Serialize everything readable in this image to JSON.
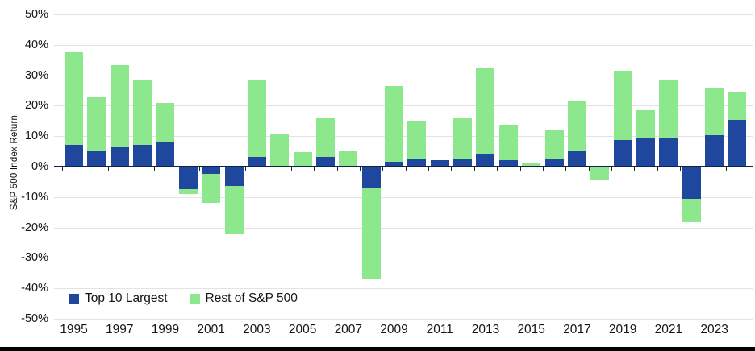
{
  "chart_data": {
    "type": "bar",
    "variant": "stacked",
    "title": "",
    "ylabel": "S&P 500 Index Return",
    "xlabel": "",
    "ylim": [
      -50,
      50
    ],
    "ytick_step": 10,
    "ytick_labels": [
      "50%",
      "40%",
      "30%",
      "20%",
      "10%",
      "0%",
      "-10%",
      "-20%",
      "-30%",
      "-40%",
      "-50%"
    ],
    "years": [
      1995,
      1996,
      1997,
      1998,
      1999,
      2000,
      2001,
      2002,
      2003,
      2004,
      2005,
      2006,
      2007,
      2008,
      2009,
      2010,
      2011,
      2012,
      2013,
      2014,
      2015,
      2016,
      2017,
      2018,
      2019,
      2020,
      2021,
      2022,
      2023,
      2024
    ],
    "xtick_labels": [
      "1995",
      "1997",
      "1999",
      "2001",
      "2003",
      "2005",
      "2007",
      "2009",
      "2011",
      "2013",
      "2015",
      "2017",
      "2019",
      "2021",
      "2023"
    ],
    "grid": true,
    "legend_position": "inside-bottom-left",
    "series": [
      {
        "name": "Top 10 Largest",
        "color": "#1f479e",
        "values": [
          7.2,
          5.2,
          6.5,
          7.2,
          8.0,
          -7.4,
          -2.5,
          -6.3,
          3.3,
          0,
          0,
          3.3,
          0,
          -6.8,
          1.7,
          2.5,
          2.0,
          2.3,
          4.3,
          2.0,
          0,
          2.6,
          4.9,
          0,
          8.6,
          9.5,
          9.3,
          -10.5,
          10.2,
          15.4
        ]
      },
      {
        "name": "Rest of S&P 500",
        "color": "#8de78c",
        "values": [
          30.3,
          17.8,
          26.9,
          21.4,
          13.0,
          -1.7,
          -9.4,
          -15.8,
          25.4,
          10.5,
          4.8,
          12.5,
          5.0,
          -30.2,
          24.8,
          12.6,
          0,
          13.7,
          28.1,
          11.7,
          1.2,
          9.4,
          16.9,
          -4.5,
          22.9,
          8.9,
          19.4,
          -7.7,
          15.8,
          9.2
        ]
      }
    ]
  }
}
